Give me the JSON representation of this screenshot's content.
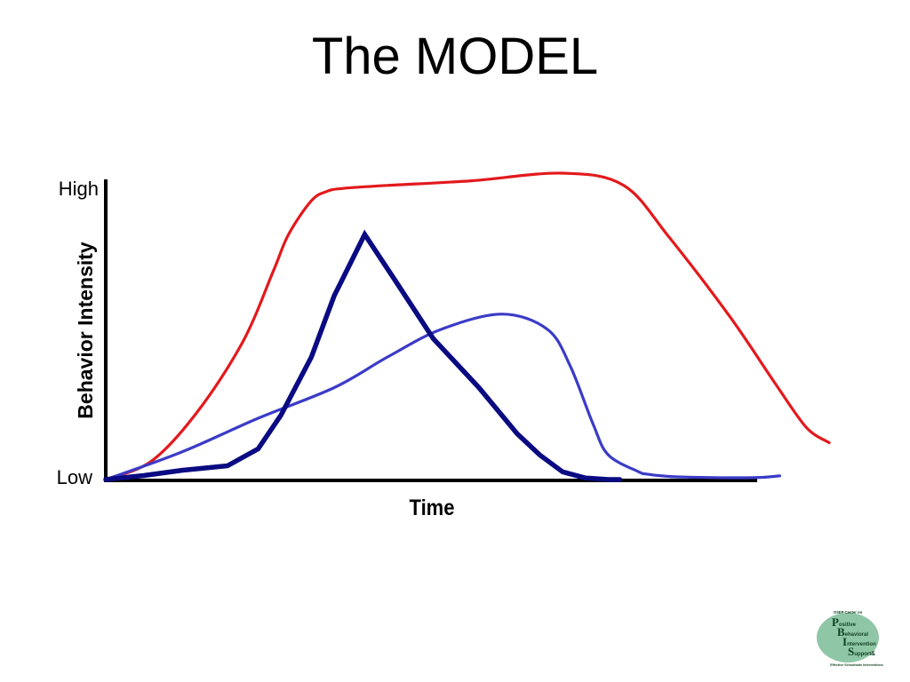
{
  "slide": {
    "title": "The MODEL"
  },
  "chart_data": {
    "type": "line",
    "title": "",
    "xlabel": "Time",
    "ylabel": "Behavior Intensity",
    "y_tick_labels": {
      "top": "High",
      "bottom": "Low"
    },
    "xlim": [
      0,
      100
    ],
    "ylim": [
      0,
      100
    ],
    "grid": false,
    "legend": "none",
    "series": [
      {
        "color": "#e3191c",
        "line_width": "medium",
        "x": [
          0,
          6,
          12,
          18,
          22,
          24,
          27,
          29,
          31,
          37,
          48,
          60,
          68,
          74,
          82,
          88,
          92,
          95
        ],
        "y": [
          0,
          6,
          22,
          45,
          68,
          80,
          91,
          94,
          95,
          96,
          97.5,
          100,
          96,
          79,
          53,
          31,
          17,
          12
        ]
      },
      {
        "color": "#3b3bc8",
        "line_width": "medium",
        "x": [
          0,
          10,
          20,
          30,
          37,
          44,
          52,
          58,
          61,
          64,
          66,
          70,
          71,
          73,
          76,
          85,
          88.5
        ],
        "y": [
          0,
          9,
          20,
          30,
          40,
          49,
          54,
          49,
          37,
          18,
          8,
          2.5,
          1.8,
          1.2,
          0.8,
          0.6,
          1.2
        ]
      },
      {
        "color": "#0a0a82",
        "line_width": "thick",
        "x": [
          0,
          5,
          10,
          16,
          20,
          23,
          27,
          30,
          34,
          38,
          43,
          49,
          54,
          57,
          60,
          63,
          66,
          67.5
        ],
        "y": [
          0,
          1.3,
          3,
          4.5,
          10,
          21,
          40,
          60,
          80,
          65,
          46,
          30,
          15,
          8,
          2.5,
          0.5,
          0,
          0
        ]
      }
    ]
  },
  "logo": {
    "line_1": "OSEP Center on",
    "words": [
      {
        "initial": "P",
        "rest": "ositive"
      },
      {
        "initial": "B",
        "rest": "ehavioral"
      },
      {
        "initial": "I",
        "rest": "ntervention"
      },
      {
        "initial": "S",
        "rest": "upport"
      }
    ],
    "ampersand": "&",
    "tagline": "Effective Schoolwide Interventions",
    "circle_color": "#8fc7a6",
    "text_color": "#0f3f22"
  }
}
